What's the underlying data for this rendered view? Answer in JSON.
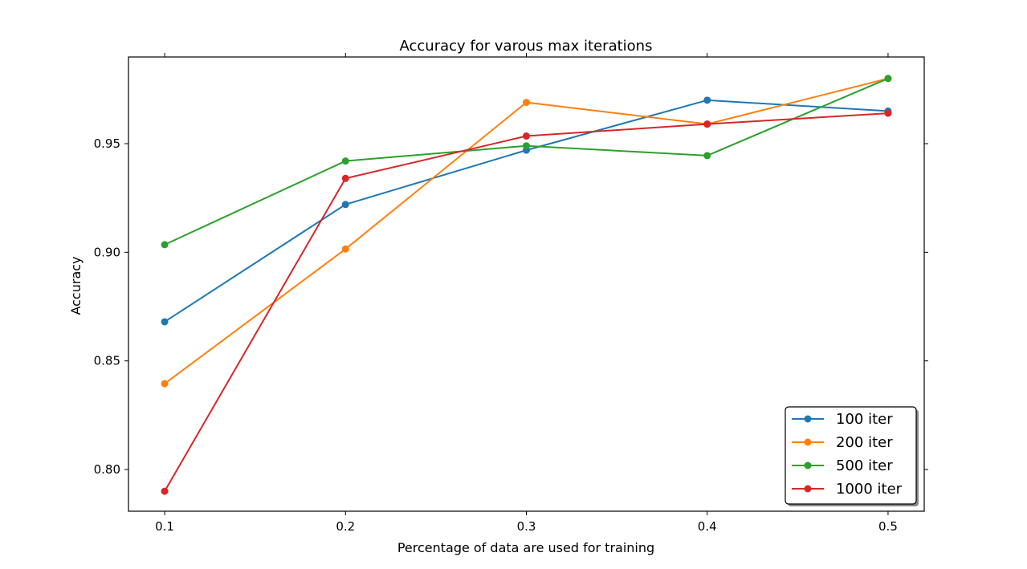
{
  "chart_data": {
    "type": "line",
    "title": "Accuracy for varous max iterations",
    "xlabel": "Percentage of data are used for training",
    "ylabel": "Accuracy",
    "x": [
      0.1,
      0.2,
      0.3,
      0.4,
      0.5
    ],
    "xticks": [
      "0.1",
      "0.2",
      "0.3",
      "0.4",
      "0.5"
    ],
    "yticks": [
      "0.80",
      "0.85",
      "0.90",
      "0.95"
    ],
    "ytick_values": [
      0.8,
      0.85,
      0.9,
      0.95
    ],
    "xlim": [
      0.08,
      0.52
    ],
    "ylim": [
      0.7808,
      0.9899
    ],
    "grid": false,
    "legend_position": "lower-right",
    "series": [
      {
        "name": "100 iter",
        "color": "#1f77b4",
        "values": [
          0.868,
          0.922,
          0.947,
          0.97,
          0.965
        ]
      },
      {
        "name": "200 iter",
        "color": "#ff7f0e",
        "values": [
          0.8395,
          0.9015,
          0.969,
          0.959,
          0.98
        ]
      },
      {
        "name": "500 iter",
        "color": "#2ca02c",
        "values": [
          0.9035,
          0.942,
          0.949,
          0.9445,
          0.98
        ]
      },
      {
        "name": "1000 iter",
        "color": "#d62728",
        "values": [
          0.79,
          0.934,
          0.9535,
          0.959,
          0.964
        ]
      }
    ]
  }
}
